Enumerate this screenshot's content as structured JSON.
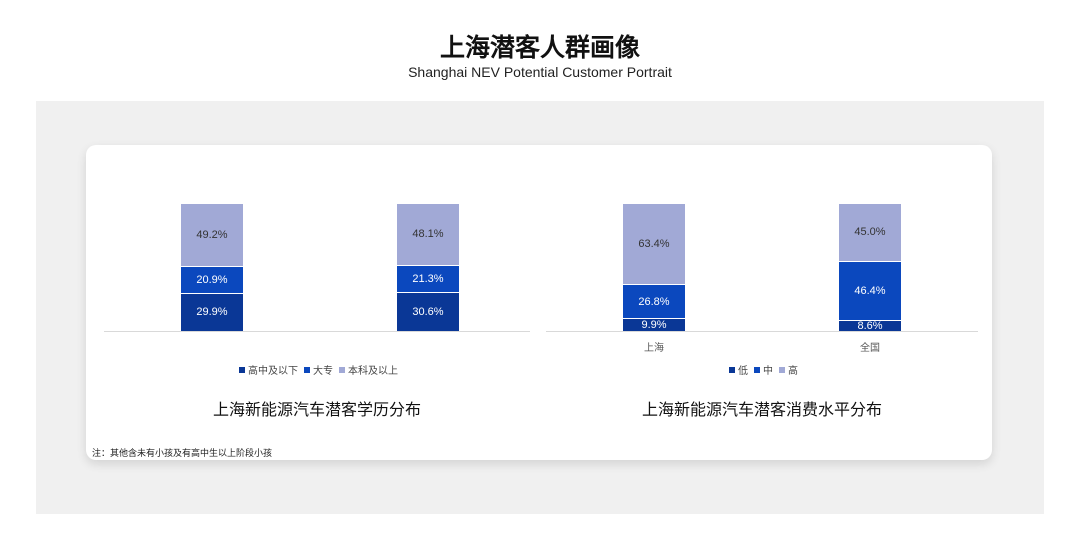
{
  "header": {
    "title": "上海潜客人群画像",
    "subtitle": "Shanghai NEV Potential Customer Portrait"
  },
  "colors": {
    "dark": "#0a3796",
    "mid": "#0b48be",
    "light": "#a1a9d6",
    "panel": "#f0f0f0"
  },
  "chart_data": [
    {
      "type": "bar",
      "stacked": true,
      "title": "上海新能源汽车潜客学历分布",
      "categories": [
        "",
        ""
      ],
      "series": [
        {
          "name": "高中及以下",
          "values": [
            29.9,
            30.6
          ]
        },
        {
          "name": "大专",
          "values": [
            20.9,
            21.3
          ]
        },
        {
          "name": "本科及以上",
          "values": [
            49.2,
            48.1
          ]
        }
      ],
      "labels": [
        [
          "29.9%",
          "30.6%"
        ],
        [
          "20.9%",
          "21.3%"
        ],
        [
          "49.2%",
          "48.1%"
        ]
      ],
      "legend": "bottom",
      "grid": false,
      "ylim": [
        0,
        100
      ]
    },
    {
      "type": "bar",
      "stacked": true,
      "title": "上海新能源汽车潜客消费水平分布",
      "categories": [
        "上海",
        "全国"
      ],
      "series": [
        {
          "name": "低",
          "values": [
            9.9,
            8.6
          ]
        },
        {
          "name": "中",
          "values": [
            26.8,
            46.4
          ]
        },
        {
          "name": "高",
          "values": [
            63.4,
            45.0
          ]
        }
      ],
      "labels": [
        [
          "9.9%",
          "8.6%"
        ],
        [
          "26.8%",
          "46.4%"
        ],
        [
          "63.4%",
          "45.0%"
        ]
      ],
      "legend": "bottom",
      "grid": false,
      "ylim": [
        0,
        100
      ]
    }
  ],
  "note": "注：其他含未有小孩及有高中生以上阶段小孩"
}
